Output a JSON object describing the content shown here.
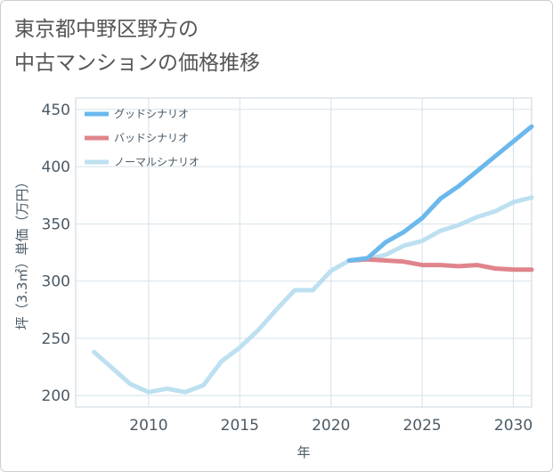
{
  "chart_data": {
    "type": "line",
    "title_lines": [
      "東京都中野区野方の",
      "中古マンションの価格推移"
    ],
    "xlabel": "年",
    "ylabel": "坪（3.3㎡）単価（万円）",
    "xlim": [
      2006,
      2031
    ],
    "ylim": [
      190,
      460
    ],
    "xticks": [
      2010,
      2015,
      2020,
      2025,
      2030
    ],
    "yticks": [
      200,
      250,
      300,
      350,
      400,
      450
    ],
    "grid": true,
    "legend_position": "top-left",
    "series": [
      {
        "name": "グッドシナリオ",
        "color": "#6bb8ec",
        "x": [
          2021,
          2022,
          2023,
          2024,
          2025,
          2026,
          2027,
          2028,
          2029,
          2030,
          2031
        ],
        "y": [
          318,
          320,
          334,
          343,
          355,
          372,
          383,
          396,
          409,
          422,
          435
        ]
      },
      {
        "name": "バッドシナリオ",
        "color": "#e0848c",
        "x": [
          2021,
          2022,
          2023,
          2024,
          2025,
          2026,
          2027,
          2028,
          2029,
          2030,
          2031
        ],
        "y": [
          318,
          319,
          318,
          317,
          314,
          314,
          313,
          314,
          311,
          310,
          310
        ]
      },
      {
        "name": "ノーマルシナリオ",
        "color": "#bde0f0",
        "x": [
          2007,
          2008,
          2009,
          2010,
          2011,
          2012,
          2013,
          2014,
          2015,
          2016,
          2017,
          2018,
          2019,
          2020,
          2021,
          2022,
          2023,
          2024,
          2025,
          2026,
          2027,
          2028,
          2029,
          2030,
          2031
        ],
        "y": [
          238,
          224,
          210,
          203,
          206,
          203,
          209,
          230,
          242,
          257,
          275,
          292,
          292,
          309,
          318,
          319,
          323,
          331,
          335,
          344,
          349,
          356,
          361,
          369,
          373
        ]
      }
    ]
  }
}
